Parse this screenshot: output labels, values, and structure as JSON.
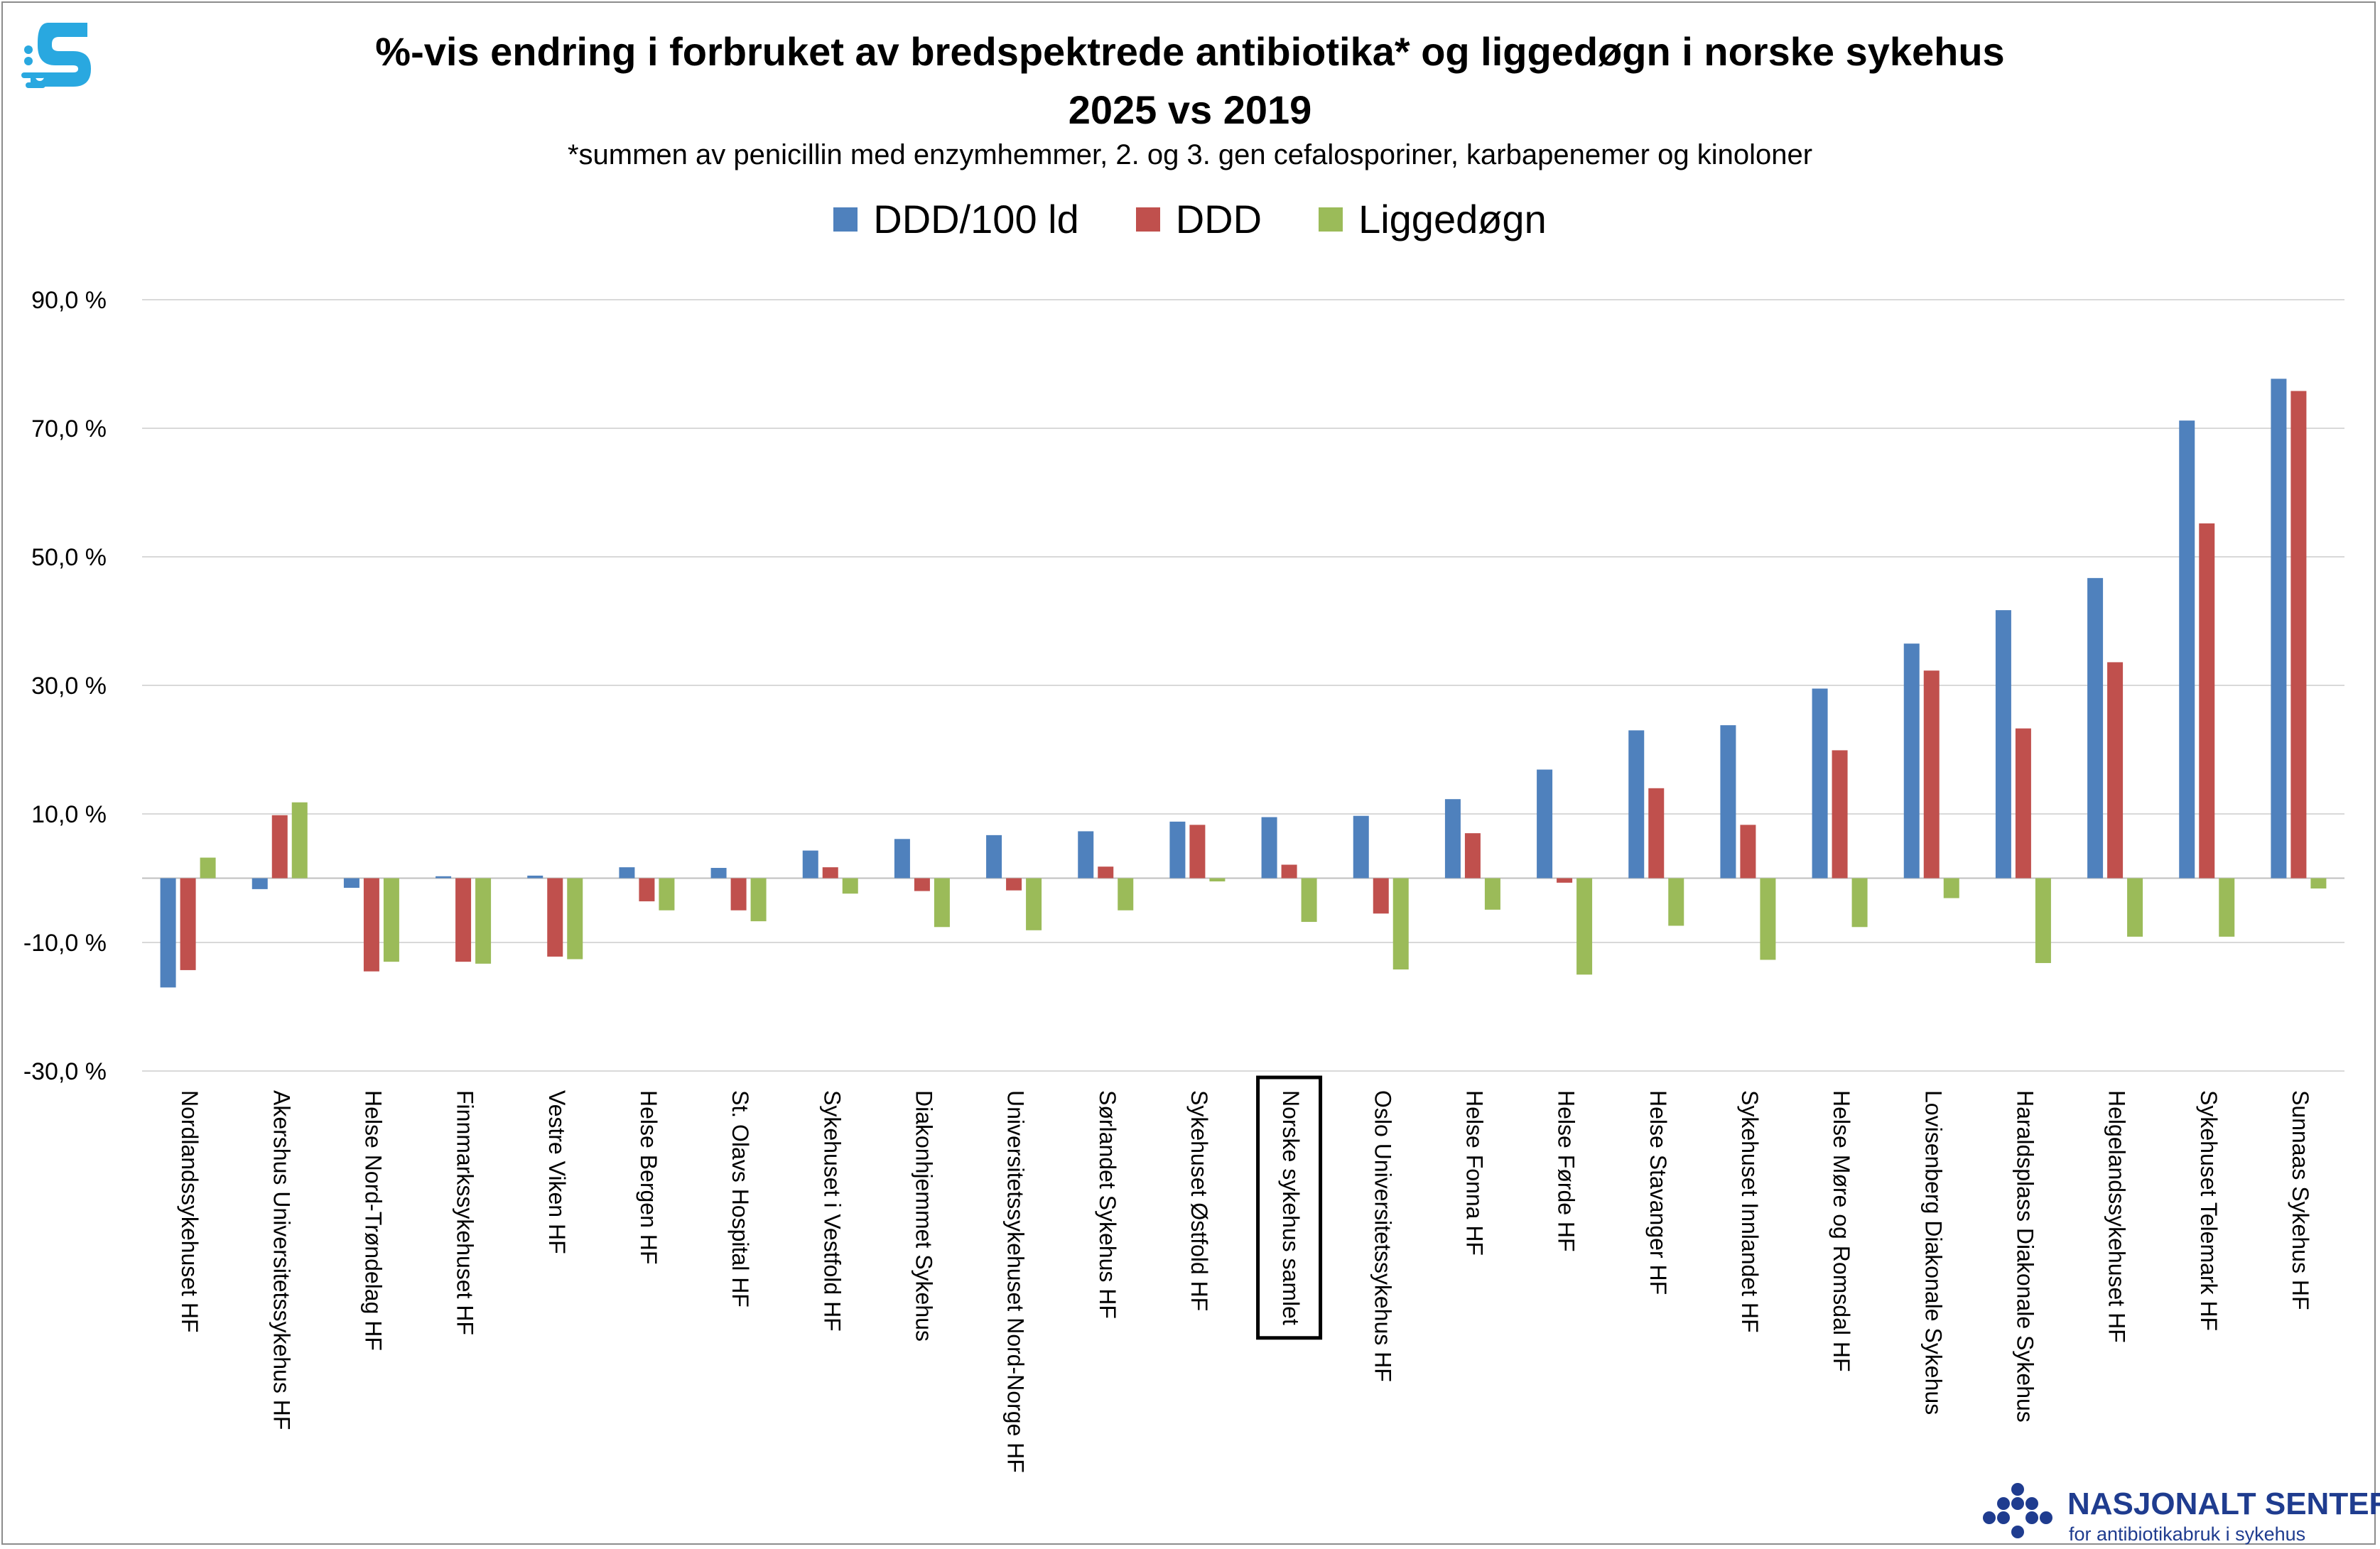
{
  "chart_data": {
    "type": "bar",
    "title": "%-vis endring i forbruket av bredspektrede antibiotika* og liggedøgn i norske sykehus",
    "title_line2": "2025 vs 2019",
    "subtitle": "*summen av penicillin med enzymhemmer, 2. og 3. gen cefalosporiner, karbapenemer og kinoloner",
    "xlabel": "",
    "ylabel": "",
    "ylim": [
      -30,
      90
    ],
    "yticks": [
      90,
      70,
      50,
      30,
      10,
      -10,
      -30
    ],
    "ytick_labels": [
      "90,0 %",
      "70,0 %",
      "50,0 %",
      "30,0 %",
      "10,0 %",
      "-10,0 %",
      "-30,0 %"
    ],
    "grid": true,
    "legend_position": "top",
    "highlighted_category": "Norske sykehus samlet",
    "categories": [
      "Nordlandssykehuset HF",
      "Akershus Universitetssykehus HF",
      "Helse Nord-Trøndelag HF",
      "Finnmarkssykehuset HF",
      "Vestre Viken HF",
      "Helse Bergen HF",
      "St. Olavs Hospital HF",
      "Sykehuset i Vestfold HF",
      "Diakonhjemmet Sykehus",
      "Universitetssykehuset Nord-Norge HF",
      "Sørlandet Sykehus HF",
      "Sykehuset Østfold HF",
      "Norske sykehus samlet",
      "Oslo Universitetssykehus HF",
      "Helse Fonna HF",
      "Helse Førde HF",
      "Helse Stavanger HF",
      "Sykehuset Innlandet HF",
      "Helse Møre og Romsdal HF",
      "Lovisenberg Diakonale Sykehus",
      "Haraldsplass Diakonale Sykehus",
      "Helgelandssykehuset HF",
      "Sykehuset Telemark HF",
      "Sunnaas Sykehus HF"
    ],
    "series": [
      {
        "name": "DDD/100 ld",
        "color": "#4f81bd",
        "values": [
          -17.0,
          -1.7,
          -1.5,
          0.3,
          0.4,
          1.7,
          1.6,
          4.3,
          6.1,
          6.7,
          7.3,
          8.8,
          9.5,
          9.7,
          12.3,
          16.9,
          23.0,
          23.8,
          29.5,
          36.5,
          41.7,
          46.7,
          71.2,
          77.7
        ]
      },
      {
        "name": "DDD",
        "color": "#c0504d",
        "values": [
          -14.3,
          9.8,
          -14.5,
          -13.0,
          -12.2,
          -3.6,
          -5.0,
          1.7,
          -2.0,
          -1.9,
          1.8,
          8.3,
          2.1,
          -5.5,
          7.0,
          -0.7,
          14.0,
          8.3,
          19.9,
          32.3,
          23.3,
          33.6,
          55.2,
          75.8
        ]
      },
      {
        "name": "Liggedøgn",
        "color": "#9bbb59",
        "values": [
          3.2,
          11.8,
          -13.0,
          -13.3,
          -12.6,
          -5.0,
          -6.7,
          -2.4,
          -7.6,
          -8.1,
          -5.0,
          -0.5,
          -6.8,
          -14.2,
          -4.9,
          -15.0,
          -7.4,
          -12.7,
          -7.6,
          -3.1,
          -13.2,
          -9.1,
          -9.1,
          -1.6
        ]
      }
    ]
  },
  "branding": {
    "left_logo_icon": "s-logo-icon",
    "right_logo_icon": "dots-cross-icon",
    "right_logo_title": "NASJONALT SENTER",
    "right_logo_subtitle": "for antibiotikabruk i sykehus"
  }
}
